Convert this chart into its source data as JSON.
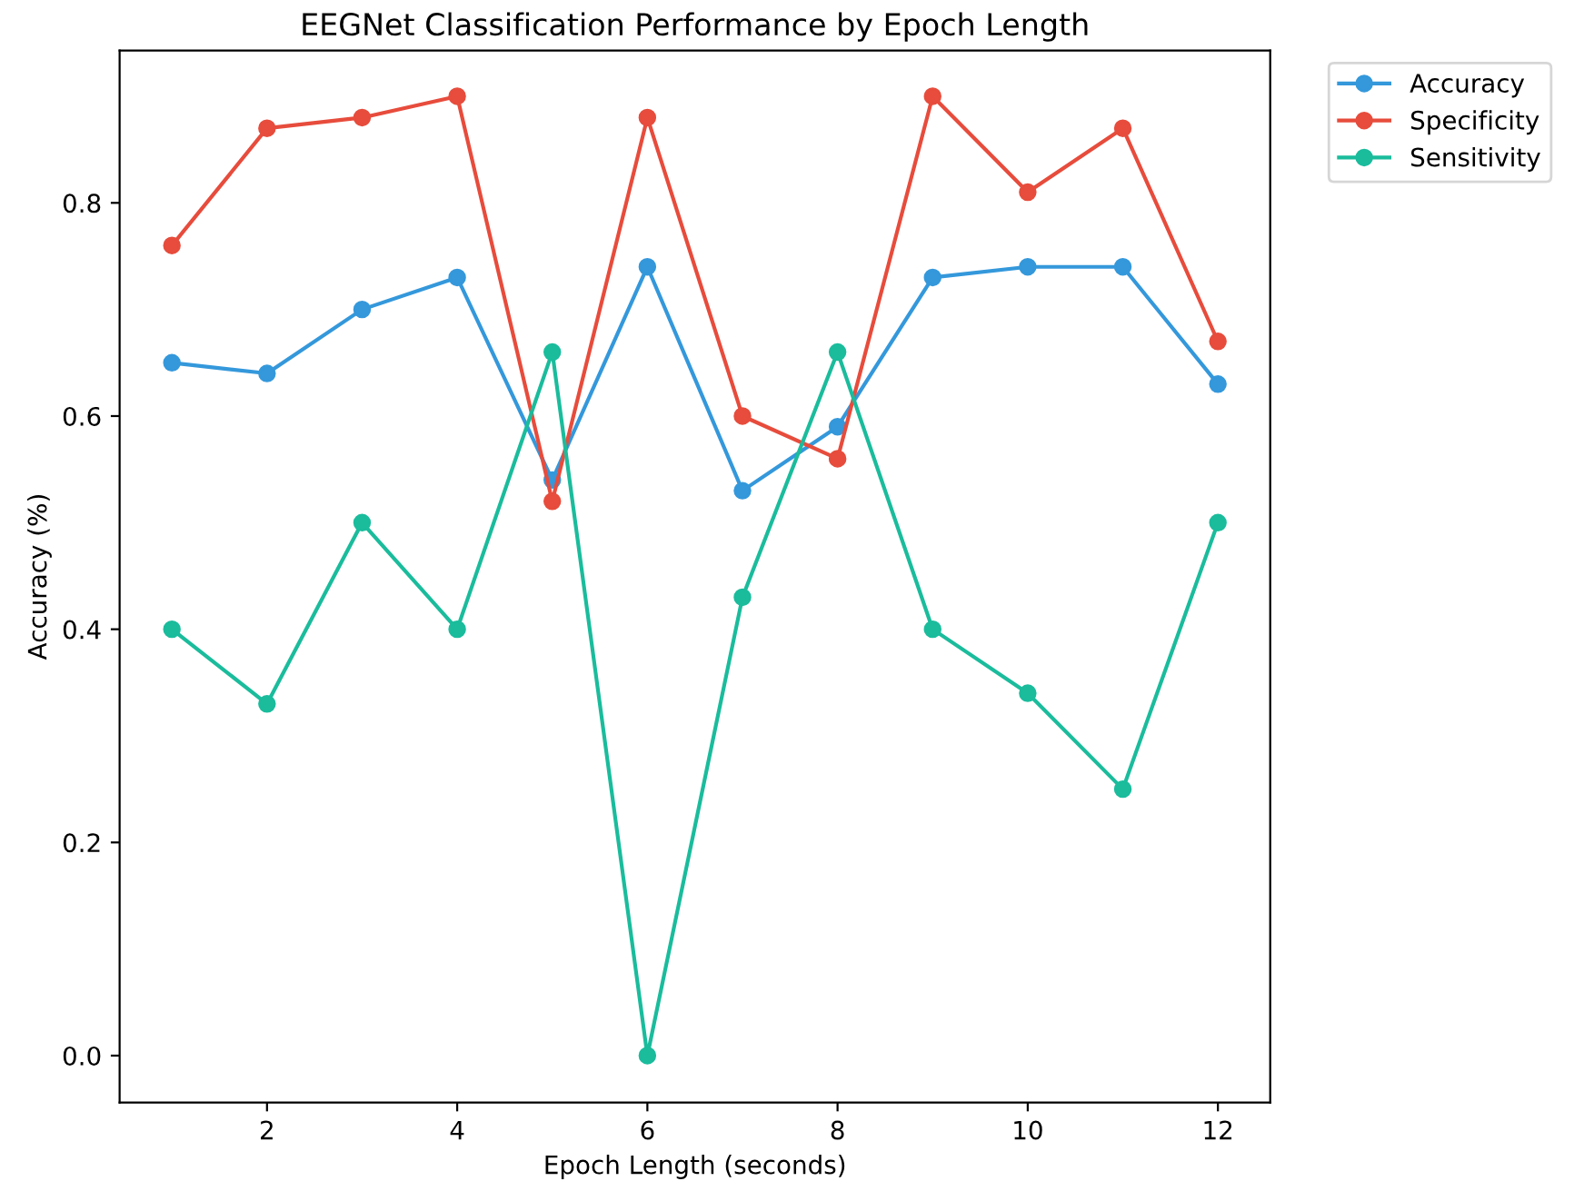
{
  "chart_data": {
    "type": "line",
    "title": "EEGNet Classification Performance by Epoch Length",
    "xlabel": "Epoch Length (seconds)",
    "ylabel": "Accuracy (%)",
    "x": [
      1,
      2,
      3,
      4,
      5,
      6,
      7,
      8,
      9,
      10,
      11,
      12
    ],
    "series": [
      {
        "name": "Accuracy",
        "color": "#3498db",
        "values": [
          0.65,
          0.64,
          0.7,
          0.73,
          0.54,
          0.74,
          0.53,
          0.59,
          0.73,
          0.74,
          0.74,
          0.63
        ]
      },
      {
        "name": "Specificity",
        "color": "#e74c3c",
        "values": [
          0.76,
          0.87,
          0.88,
          0.9,
          0.52,
          0.88,
          0.6,
          0.56,
          0.9,
          0.81,
          0.87,
          0.67
        ]
      },
      {
        "name": "Sensitivity",
        "color": "#1abc9c",
        "values": [
          0.4,
          0.33,
          0.5,
          0.4,
          0.66,
          0.0,
          0.43,
          0.66,
          0.4,
          0.34,
          0.25,
          0.5
        ]
      }
    ],
    "xlim": [
      0.45,
      12.55
    ],
    "xticks": [
      2,
      4,
      6,
      8,
      10,
      12
    ],
    "ylim": [
      -0.044,
      0.943
    ],
    "yticks": [
      {
        "value": 0,
        "label": "0.0"
      },
      {
        "value": 0.2,
        "label": "0.2"
      },
      {
        "value": 0.4,
        "label": "0.4"
      },
      {
        "value": 0.6,
        "label": "0.6"
      },
      {
        "value": 0.8,
        "label": "0.8"
      }
    ],
    "marker": "circle",
    "line_style": "solid",
    "legend": "top right",
    "grid": false
  }
}
